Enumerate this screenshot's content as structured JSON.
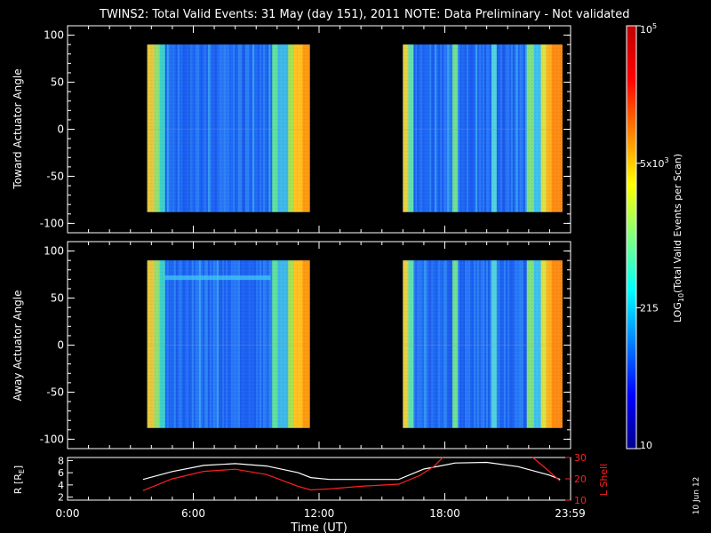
{
  "title": {
    "main": "TWINS2: Total Valid Events: 31 May (day 151), 2011",
    "note": "NOTE: Data Preliminary - Not validated",
    "note_color": "#ff1a1a"
  },
  "footer_date": "10 Jun 12",
  "chart_data": [
    {
      "type": "heatmap",
      "panel": "toward",
      "ylabel": "Toward Actuator Angle",
      "ylim": [
        -110,
        110
      ],
      "yticks": [
        "100",
        "50",
        "0",
        "-50",
        "-100"
      ],
      "ytick_values": [
        100,
        50,
        0,
        -50,
        -100
      ],
      "x_hours_lim": [
        0,
        24
      ],
      "data_blocks_hours": [
        [
          3.8,
          11.55
        ],
        [
          16.0,
          23.6
        ]
      ],
      "angle_range": [
        -88,
        90
      ],
      "colormap": "rainbow-log",
      "legend": "none"
    },
    {
      "type": "heatmap",
      "panel": "away",
      "ylabel": "Away Actuator Angle",
      "ylim": [
        -110,
        110
      ],
      "yticks": [
        "100",
        "50",
        "0",
        "-50",
        "-100"
      ],
      "ytick_values": [
        100,
        50,
        0,
        -50,
        -100
      ],
      "x_hours_lim": [
        0,
        24
      ],
      "data_blocks_hours": [
        [
          3.8,
          11.55
        ],
        [
          16.0,
          23.6
        ]
      ],
      "angle_range": [
        -88,
        90
      ],
      "colormap": "rainbow-log",
      "legend": "none"
    },
    {
      "type": "line",
      "panel": "orbit",
      "xlabel": "Time (UT)",
      "xticks": [
        "0:00",
        "6:00",
        "12:00",
        "18:00",
        "23:59"
      ],
      "xtick_hours": [
        0,
        6,
        12,
        18,
        23.98
      ],
      "ylabel_left": "R [R",
      "ylabel_left_sub": "E",
      "ylabel_left_close": "]",
      "ylim_left": [
        1.5,
        8.5
      ],
      "yticks_left": [
        "8",
        "6",
        "4",
        "2"
      ],
      "ytick_left_values": [
        8,
        6,
        4,
        2
      ],
      "ylabel_right": "L Shell",
      "ylim_right": [
        10,
        30
      ],
      "yticks_right": [
        "30",
        "20",
        "10"
      ],
      "ytick_right_values": [
        30,
        20,
        10
      ],
      "series": [
        {
          "axis": "left",
          "color": "#ffffff",
          "points": [
            [
              3.6,
              4.9
            ],
            [
              5,
              6.2
            ],
            [
              6.5,
              7.2
            ],
            [
              8,
              7.5
            ],
            [
              9.5,
              7.1
            ],
            [
              11,
              6.0
            ],
            [
              11.6,
              5.2
            ],
            [
              12.5,
              4.9
            ],
            [
              14,
              4.9
            ],
            [
              15.8,
              4.9
            ],
            [
              17,
              6.6
            ],
            [
              18.5,
              7.6
            ],
            [
              20,
              7.7
            ],
            [
              21.5,
              7.0
            ],
            [
              23,
              5.6
            ],
            [
              23.5,
              4.9
            ]
          ]
        },
        {
          "axis": "right",
          "color": "#ff2020",
          "points": [
            [
              3.6,
              14.5
            ],
            [
              5,
              20
            ],
            [
              6.5,
              23.5
            ],
            [
              8,
              24.5
            ],
            [
              9.5,
              22
            ],
            [
              11,
              16.5
            ],
            [
              11.6,
              14.8
            ],
            [
              12.5,
              15.3
            ],
            [
              14,
              16.5
            ],
            [
              15.8,
              17.5
            ],
            [
              16.8,
              21.5
            ],
            [
              17.5,
              26
            ],
            [
              17.9,
              30
            ]
          ]
        },
        {
          "axis": "right",
          "color": "#ff2020",
          "points": [
            [
              22.2,
              30
            ],
            [
              22.8,
              25
            ],
            [
              23.5,
              19
            ]
          ]
        }
      ]
    },
    {
      "type": "colorbar",
      "label": "LOG10(Total Valid Events per Scan)",
      "label_main": "LOG",
      "label_sub": "10",
      "label_rest": "(Total Valid Events per Scan)",
      "log_range": [
        1,
        5
      ],
      "ticks": [
        {
          "base": "10",
          "exp": "",
          "value": 10
        },
        {
          "base": "215",
          "exp": "",
          "value": 215
        },
        {
          "base": "5x10",
          "exp": "3",
          "value": 5000
        },
        {
          "base": "10",
          "exp": "5",
          "value": 100000
        }
      ],
      "colors": [
        "#00008f",
        "#0000ff",
        "#0080ff",
        "#00ffff",
        "#80ff80",
        "#ffff00",
        "#ff8000",
        "#ff0000",
        "#c00000"
      ]
    }
  ]
}
